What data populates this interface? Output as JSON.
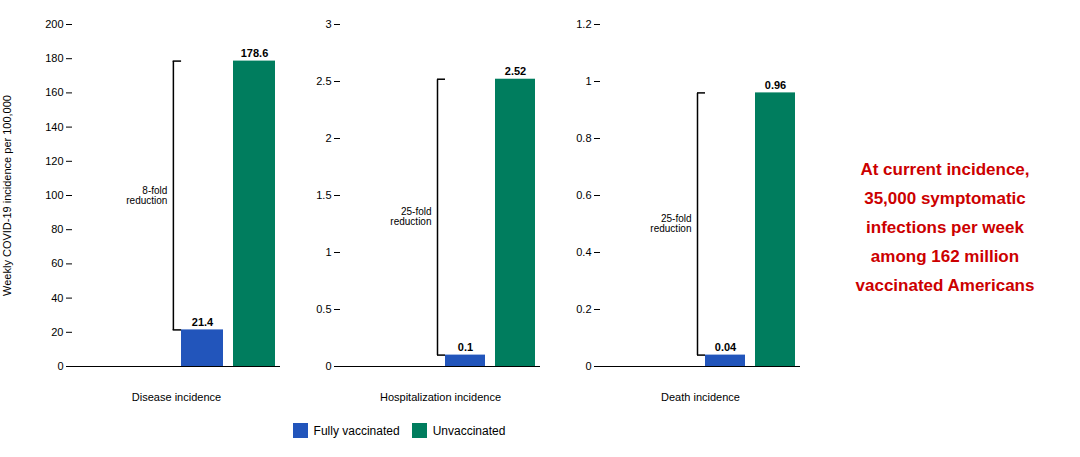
{
  "chart_data": [
    {
      "type": "bar",
      "xlabel": "Disease incidence",
      "ylabel": "Weekly COVID-19 incidence per 100,000",
      "categories": [
        null
      ],
      "series": [
        {
          "name": "Fully vaccinated",
          "color": "#2255bb",
          "values": [
            21.4
          ]
        },
        {
          "name": "Unvaccinated",
          "color": "#007d5e",
          "values": [
            178.6
          ]
        }
      ],
      "ylim": [
        0,
        200
      ],
      "yticks": [
        0,
        20,
        40,
        60,
        80,
        100,
        120,
        140,
        160,
        180,
        200
      ],
      "grid": false,
      "data_labels": true,
      "tick_labels": "y",
      "annotations": [
        {
          "text": "8-fold\nreduction"
        }
      ]
    },
    {
      "type": "bar",
      "xlabel": "Hospitalization incidence",
      "categories": [
        null
      ],
      "series": [
        {
          "name": "Fully vaccinated",
          "color": "#2255bb",
          "values": [
            0.1
          ]
        },
        {
          "name": "Unvaccinated",
          "color": "#007d5e",
          "values": [
            2.52
          ]
        }
      ],
      "ylim": [
        0,
        3
      ],
      "yticks": [
        0,
        0.5,
        1,
        1.5,
        2,
        2.5,
        3
      ],
      "grid": false,
      "data_labels": true,
      "tick_labels": "y",
      "legend": "bottom",
      "annotations": [
        {
          "text": "25-fold\nreduction"
        }
      ]
    },
    {
      "type": "bar",
      "xlabel": "Death incidence",
      "categories": [
        null
      ],
      "series": [
        {
          "name": "Fully vaccinated",
          "color": "#2255bb",
          "values": [
            0.04
          ]
        },
        {
          "name": "Unvaccinated",
          "color": "#007d5e",
          "values": [
            0.96
          ]
        }
      ],
      "ylim": [
        0,
        1.2
      ],
      "yticks": [
        0,
        0.2,
        0.4,
        0.6,
        0.8,
        1,
        1.2
      ],
      "grid": false,
      "data_labels": true,
      "tick_labels": "y",
      "annotations": [
        {
          "text": "25-fold\nreduction"
        },
        {
          "text": "At current incidence,\n35,000 symptomatic\ninfections per week\namong 162 million\nvaccinated Americans",
          "color": "#cc0000"
        }
      ]
    }
  ]
}
